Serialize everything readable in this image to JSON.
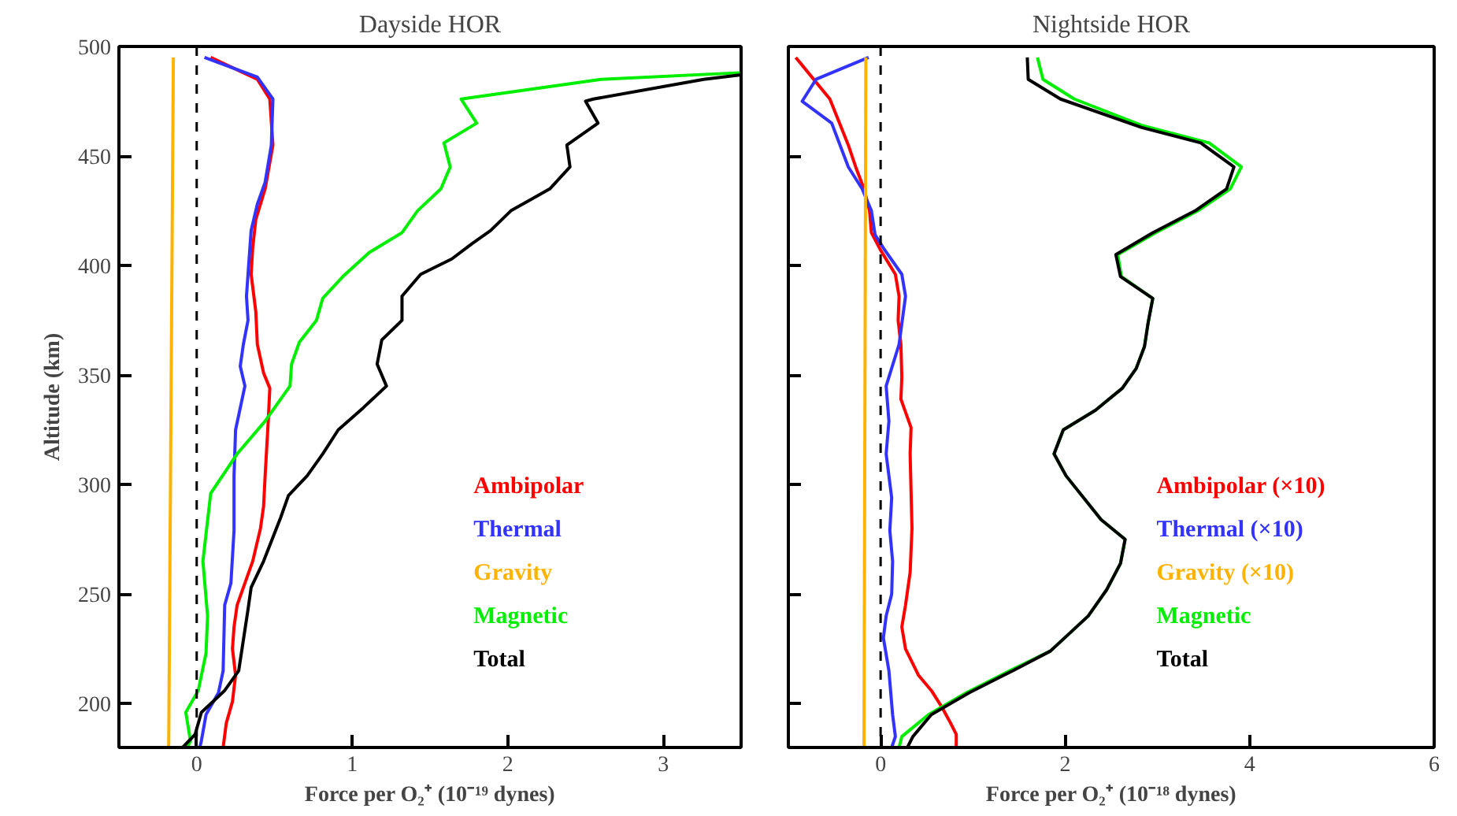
{
  "chart_data": [
    {
      "type": "line",
      "title": "Dayside HOR",
      "xlabel": "Force per O₂⁺ (10⁻¹⁹ dynes)",
      "ylabel": "Altitude (km)",
      "xlim": [
        -0.5,
        3.5
      ],
      "xticks": [
        0,
        1,
        2,
        3
      ],
      "ylim": [
        180,
        500
      ],
      "yticks": [
        200,
        250,
        300,
        350,
        400,
        450,
        500
      ],
      "legend": "bottom right",
      "ref_lines": [
        {
          "axis": "x",
          "value": 0,
          "color": "#000000",
          "line_style": "dashed"
        }
      ],
      "series": [
        {
          "name": "Ambipolar",
          "color": "#ff0000",
          "x": [
            0.09,
            0.39,
            0.47,
            0.49,
            0.44,
            0.38,
            0.36,
            0.35,
            0.38,
            0.39,
            0.43,
            0.47,
            0.46,
            0.44,
            0.43,
            0.41,
            0.36,
            0.31,
            0.26,
            0.24,
            0.23,
            0.25,
            0.23,
            0.19,
            0.17
          ],
          "values": [
            495,
            485,
            476,
            455,
            435,
            421,
            408,
            396,
            379,
            364,
            351,
            344,
            329,
            304,
            290,
            280,
            265,
            255,
            245,
            235,
            225,
            213,
            201,
            191,
            180
          ]
        },
        {
          "name": "Thermal",
          "color": "#3333ff",
          "x": [
            0.05,
            0.39,
            0.49,
            0.48,
            0.44,
            0.39,
            0.35,
            0.33,
            0.32,
            0.33,
            0.3,
            0.28,
            0.31,
            0.25,
            0.24,
            0.24,
            0.22,
            0.18,
            0.17,
            0.14,
            0.06,
            0.03,
            0.02
          ],
          "values": [
            495,
            486,
            476,
            455,
            438,
            428,
            416,
            396,
            386,
            375,
            364,
            354,
            345,
            325,
            304,
            279,
            255,
            245,
            215,
            205,
            195,
            183,
            180
          ]
        },
        {
          "name": "Gravity",
          "color": "#ffb300",
          "x": [
            -0.15,
            -0.18
          ],
          "values": [
            495,
            180
          ]
        },
        {
          "name": "Magnetic",
          "color": "#00ee00",
          "x": [
            3.49,
            2.6,
            1.7,
            1.8,
            1.59,
            1.63,
            1.57,
            1.42,
            1.32,
            1.11,
            0.94,
            0.81,
            0.77,
            0.66,
            0.61,
            0.6,
            0.44,
            0.26,
            0.09,
            0.04,
            0.07,
            0.06,
            0.01,
            -0.07,
            -0.04,
            -0.06
          ],
          "values": [
            488,
            485,
            476,
            465,
            456,
            445,
            435,
            425,
            415,
            406,
            395,
            385,
            375,
            365,
            355,
            345,
            329,
            314,
            296,
            265,
            240,
            223,
            206,
            196,
            183,
            180
          ]
        },
        {
          "name": "Total",
          "color": "#000000",
          "x": [
            3.49,
            3.26,
            2.55,
            2.5,
            2.58,
            2.38,
            2.4,
            2.27,
            2.02,
            1.89,
            1.77,
            1.64,
            1.44,
            1.32,
            1.32,
            1.19,
            1.16,
            1.22,
            1.07,
            0.91,
            0.81,
            0.71,
            0.59,
            0.54,
            0.43,
            0.35,
            0.33,
            0.27,
            0.18,
            0.03,
            -0.01,
            -0.09
          ],
          "values": [
            487,
            485,
            476,
            475,
            465,
            455,
            445,
            435,
            425,
            416,
            410,
            403,
            396,
            386,
            375,
            366,
            355,
            345,
            335,
            325,
            314,
            304,
            295,
            285,
            265,
            253,
            243,
            215,
            206,
            196,
            186,
            180
          ]
        }
      ]
    },
    {
      "type": "line",
      "title": "Nightside HOR",
      "xlabel": "Force per O₂⁺ (10⁻¹⁸ dynes)",
      "xlim": [
        -1,
        6
      ],
      "xticks": [
        0,
        2,
        4,
        6
      ],
      "ylim": [
        180,
        500
      ],
      "yticks": [
        200,
        250,
        300,
        350,
        400,
        450,
        500
      ],
      "tick_labels": "x",
      "legend": "bottom right",
      "ref_lines": [
        {
          "axis": "x",
          "value": 0,
          "color": "#000000",
          "line_style": "dashed"
        }
      ],
      "series": [
        {
          "name": "Ambipolar (×10)",
          "color": "#ff0000",
          "x": [
            -0.92,
            -0.55,
            -0.35,
            -0.27,
            -0.18,
            -0.12,
            -0.1,
            0,
            0.16,
            0.2,
            0.19,
            0.22,
            0.23,
            0.22,
            0.33,
            0.32,
            0.33,
            0.34,
            0.32,
            0.27,
            0.23,
            0.27,
            0.41,
            0.55,
            0.67,
            0.76,
            0.82,
            0.82
          ],
          "values": [
            495,
            476,
            455,
            445,
            435,
            425,
            415,
            407,
            396,
            386,
            375,
            364,
            349,
            339,
            326,
            314,
            297,
            280,
            260,
            245,
            235,
            225,
            213,
            206,
            198,
            191,
            186,
            180
          ]
        },
        {
          "name": "Thermal (×10)",
          "color": "#3333ff",
          "x": [
            -0.13,
            -0.7,
            -0.85,
            -0.53,
            -0.35,
            -0.2,
            -0.1,
            -0.06,
            0.03,
            0.23,
            0.27,
            0.2,
            0.06,
            0.09,
            0.06,
            0.12,
            0.1,
            0.13,
            0.12,
            0.06,
            0.03,
            0.09,
            0.13,
            0.16,
            0.12
          ],
          "values": [
            495,
            485,
            475,
            465,
            445,
            435,
            425,
            414,
            408,
            396,
            386,
            364,
            345,
            329,
            314,
            294,
            279,
            265,
            250,
            240,
            230,
            215,
            195,
            185,
            180
          ]
        },
        {
          "name": "Gravity (×10)",
          "color": "#ffb300",
          "x": [
            -0.16,
            -0.18
          ],
          "values": [
            495,
            180
          ]
        },
        {
          "name": "Magnetic",
          "color": "#00ee00",
          "x": [
            1.7,
            1.76,
            2.1,
            2.83,
            3.56,
            3.91,
            3.79,
            3.44,
            2.98,
            2.57,
            2.61,
            2.95,
            2.9,
            2.86,
            2.77,
            2.62,
            2.33,
            1.98,
            1.88,
            2.01,
            2.39,
            2.65,
            2.6,
            2.45,
            2.25,
            1.84,
            1.4,
            0.93,
            0.52,
            0.23,
            0.2
          ],
          "values": [
            495,
            485,
            476,
            464,
            456,
            445,
            435,
            425,
            415,
            405,
            395,
            385,
            374,
            363,
            353,
            344,
            334,
            325,
            314,
            304,
            284,
            275,
            264,
            252,
            240,
            224,
            215,
            205,
            195,
            185,
            180
          ]
        },
        {
          "name": "Total",
          "color": "#000000",
          "x": [
            1.59,
            1.6,
            1.95,
            2.83,
            3.47,
            3.83,
            3.75,
            3.41,
            2.95,
            2.55,
            2.6,
            2.95,
            2.9,
            2.86,
            2.77,
            2.62,
            2.33,
            1.98,
            1.88,
            2.01,
            2.39,
            2.65,
            2.6,
            2.45,
            2.25,
            1.84,
            1.43,
            0.96,
            0.55,
            0.35,
            0.29
          ],
          "values": [
            495,
            485,
            476,
            463,
            456,
            445,
            435,
            425,
            415,
            405,
            395,
            385,
            374,
            363,
            353,
            344,
            334,
            325,
            314,
            304,
            284,
            275,
            264,
            252,
            240,
            224,
            215,
            205,
            195,
            185,
            180
          ]
        }
      ]
    }
  ]
}
